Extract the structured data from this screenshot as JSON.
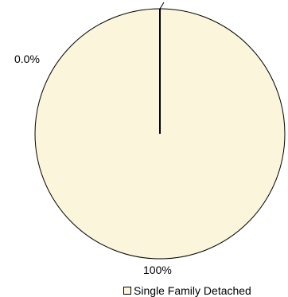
{
  "chart_data": {
    "type": "pie",
    "slices": [
      {
        "name": "",
        "value": 0.0,
        "label": "0.0%",
        "color": "#FBF5DC"
      },
      {
        "name": "Single Family Detached",
        "value": 100,
        "label": "100%",
        "color": "#FBF5DC"
      }
    ],
    "legend": {
      "position": "bottom",
      "entries": [
        {
          "label": "Single Family Detached",
          "color": "#FBF5DC"
        }
      ]
    }
  }
}
